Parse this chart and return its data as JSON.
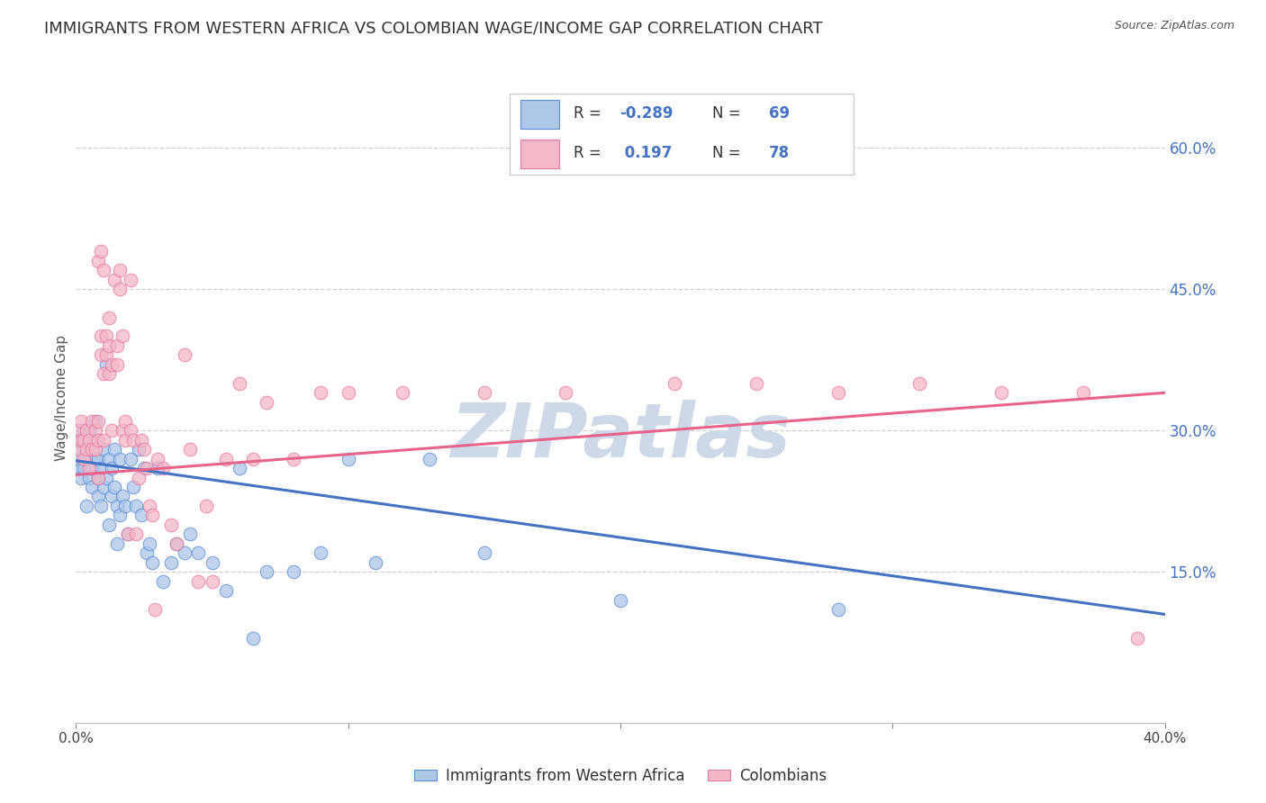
{
  "title": "IMMIGRANTS FROM WESTERN AFRICA VS COLOMBIAN WAGE/INCOME GAP CORRELATION CHART",
  "source": "Source: ZipAtlas.com",
  "ylabel": "Wage/Income Gap",
  "watermark": "ZIPatlas",
  "legend_blue_R": "-0.289",
  "legend_blue_N": "69",
  "legend_pink_R": "0.197",
  "legend_pink_N": "78",
  "legend_blue_label": "Immigrants from Western Africa",
  "legend_pink_label": "Colombians",
  "blue_color": "#aec6e8",
  "pink_color": "#f4b8c8",
  "blue_edge_color": "#5b8ed6",
  "pink_edge_color": "#e87aa0",
  "blue_line_color": "#4472C4",
  "pink_line_color": "#E8638A",
  "right_axis_color": "#4472C4",
  "right_yticks": [
    0.15,
    0.3,
    0.45,
    0.6
  ],
  "right_yticklabels": [
    "15.0%",
    "30.0%",
    "45.0%",
    "60.0%"
  ],
  "xlim": [
    0.0,
    0.4
  ],
  "ylim": [
    -0.01,
    0.68
  ],
  "blue_scatter_x": [
    0.001,
    0.001,
    0.002,
    0.002,
    0.002,
    0.003,
    0.003,
    0.003,
    0.004,
    0.004,
    0.005,
    0.005,
    0.005,
    0.006,
    0.006,
    0.007,
    0.007,
    0.007,
    0.008,
    0.008,
    0.008,
    0.009,
    0.009,
    0.01,
    0.01,
    0.011,
    0.011,
    0.012,
    0.012,
    0.013,
    0.013,
    0.014,
    0.014,
    0.015,
    0.015,
    0.016,
    0.016,
    0.017,
    0.018,
    0.019,
    0.02,
    0.021,
    0.022,
    0.023,
    0.024,
    0.025,
    0.026,
    0.027,
    0.028,
    0.03,
    0.032,
    0.035,
    0.037,
    0.04,
    0.042,
    0.045,
    0.05,
    0.055,
    0.06,
    0.065,
    0.07,
    0.08,
    0.09,
    0.1,
    0.11,
    0.13,
    0.15,
    0.2,
    0.28
  ],
  "blue_scatter_y": [
    0.27,
    0.29,
    0.26,
    0.25,
    0.29,
    0.28,
    0.26,
    0.3,
    0.27,
    0.22,
    0.25,
    0.28,
    0.3,
    0.24,
    0.26,
    0.27,
    0.29,
    0.31,
    0.25,
    0.23,
    0.27,
    0.22,
    0.26,
    0.28,
    0.24,
    0.37,
    0.25,
    0.27,
    0.2,
    0.26,
    0.23,
    0.28,
    0.24,
    0.18,
    0.22,
    0.21,
    0.27,
    0.23,
    0.22,
    0.19,
    0.27,
    0.24,
    0.22,
    0.28,
    0.21,
    0.26,
    0.17,
    0.18,
    0.16,
    0.26,
    0.14,
    0.16,
    0.18,
    0.17,
    0.19,
    0.17,
    0.16,
    0.13,
    0.26,
    0.08,
    0.15,
    0.15,
    0.17,
    0.27,
    0.16,
    0.27,
    0.17,
    0.12,
    0.11
  ],
  "pink_scatter_x": [
    0.001,
    0.001,
    0.002,
    0.002,
    0.003,
    0.003,
    0.004,
    0.004,
    0.005,
    0.005,
    0.006,
    0.006,
    0.007,
    0.007,
    0.008,
    0.008,
    0.008,
    0.009,
    0.009,
    0.01,
    0.01,
    0.011,
    0.011,
    0.012,
    0.012,
    0.013,
    0.013,
    0.014,
    0.015,
    0.015,
    0.016,
    0.016,
    0.017,
    0.017,
    0.018,
    0.018,
    0.019,
    0.02,
    0.02,
    0.021,
    0.022,
    0.023,
    0.024,
    0.025,
    0.026,
    0.027,
    0.028,
    0.029,
    0.03,
    0.032,
    0.035,
    0.037,
    0.04,
    0.042,
    0.045,
    0.048,
    0.05,
    0.055,
    0.06,
    0.065,
    0.07,
    0.08,
    0.09,
    0.1,
    0.12,
    0.15,
    0.18,
    0.22,
    0.25,
    0.28,
    0.31,
    0.34,
    0.37,
    0.39,
    0.008,
    0.009,
    0.01,
    0.012
  ],
  "pink_scatter_y": [
    0.28,
    0.3,
    0.29,
    0.31,
    0.27,
    0.29,
    0.28,
    0.3,
    0.29,
    0.26,
    0.28,
    0.31,
    0.3,
    0.28,
    0.29,
    0.31,
    0.25,
    0.38,
    0.4,
    0.29,
    0.36,
    0.4,
    0.38,
    0.36,
    0.39,
    0.3,
    0.37,
    0.46,
    0.37,
    0.39,
    0.47,
    0.45,
    0.3,
    0.4,
    0.29,
    0.31,
    0.19,
    0.46,
    0.3,
    0.29,
    0.19,
    0.25,
    0.29,
    0.28,
    0.26,
    0.22,
    0.21,
    0.11,
    0.27,
    0.26,
    0.2,
    0.18,
    0.38,
    0.28,
    0.14,
    0.22,
    0.14,
    0.27,
    0.35,
    0.27,
    0.33,
    0.27,
    0.34,
    0.34,
    0.34,
    0.34,
    0.34,
    0.35,
    0.35,
    0.34,
    0.35,
    0.34,
    0.34,
    0.08,
    0.48,
    0.49,
    0.47,
    0.42
  ],
  "blue_trend_x": [
    0.0,
    0.4
  ],
  "blue_trend_y": [
    0.268,
    0.105
  ],
  "pink_trend_x": [
    0.0,
    0.4
  ],
  "pink_trend_y": [
    0.253,
    0.34
  ],
  "background_color": "#ffffff",
  "grid_color": "#d0d0d0",
  "title_fontsize": 13,
  "label_fontsize": 11,
  "tick_fontsize": 11,
  "watermark_color": "#cdd8e8",
  "watermark_fontsize": 60,
  "scatter_size": 110,
  "scatter_alpha": 0.75
}
